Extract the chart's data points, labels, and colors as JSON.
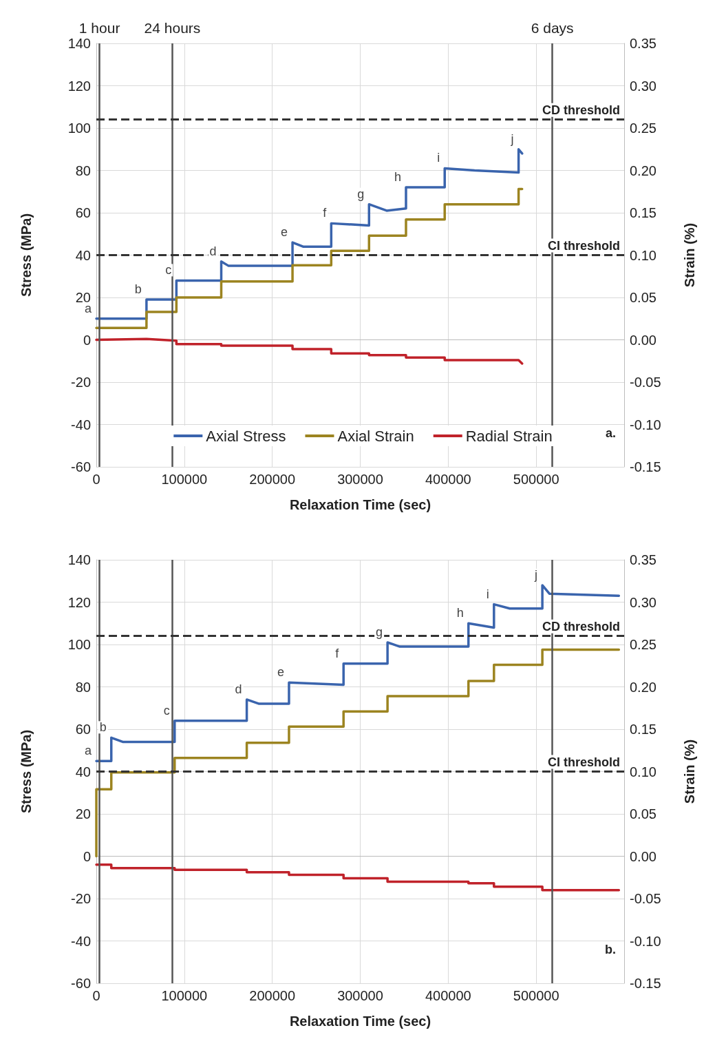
{
  "chart_data": [
    {
      "type": "line",
      "xlabel": "Relaxation Time (sec)",
      "ylabel": "Stress (MPa)",
      "y2label": "Strain (%)",
      "xlim": [
        0,
        600000
      ],
      "xticks": [
        0,
        100000,
        200000,
        300000,
        400000,
        500000
      ],
      "ylim": [
        -60,
        140
      ],
      "yticks": [
        -60,
        -40,
        -20,
        0,
        20,
        40,
        60,
        80,
        100,
        120,
        140
      ],
      "y2lim": [
        -0.15,
        0.35
      ],
      "y2ticks": [
        {
          "value": -0.15,
          "label": "-0.15"
        },
        {
          "value": -0.1,
          "label": "-0.10"
        },
        {
          "value": -0.05,
          "label": "-0.05"
        },
        {
          "value": 0,
          "label": "0.00"
        },
        {
          "value": 0.05,
          "label": "0.05"
        },
        {
          "value": 0.1,
          "label": "0.10"
        },
        {
          "value": 0.15,
          "label": "0.15"
        },
        {
          "value": 0.2,
          "label": "0.20"
        },
        {
          "value": 0.25,
          "label": "0.25"
        },
        {
          "value": 0.3,
          "label": "0.30"
        },
        {
          "value": 0.35,
          "label": "0.35"
        }
      ],
      "grid": true,
      "legend": "bottom",
      "marker": "none",
      "line_style": "solid",
      "series": [
        {
          "name": "Axial Stress",
          "color": "#3a64ad",
          "x": [
            0,
            57000,
            57000,
            91000,
            91000,
            142000,
            142000,
            150000,
            223000,
            223000,
            235000,
            267000,
            267000,
            310000,
            310000,
            330000,
            352000,
            352000,
            396000,
            396000,
            430000,
            480000,
            480000,
            484000
          ],
          "values": [
            10,
            10,
            19,
            19,
            28,
            28,
            37,
            35,
            35,
            46,
            44,
            44,
            55,
            54,
            64,
            61,
            62,
            72,
            72,
            81,
            80,
            79,
            90,
            88
          ]
        },
        {
          "name": "Axial Strain",
          "color": "#9c8420",
          "axis": "y2",
          "x": [
            0,
            57000,
            57000,
            91000,
            91000,
            142000,
            142000,
            223000,
            223000,
            267000,
            267000,
            310000,
            310000,
            352000,
            352000,
            396000,
            396000,
            480000,
            480000,
            484000
          ],
          "values": [
            0.014,
            0.014,
            0.033,
            0.033,
            0.05,
            0.05,
            0.069,
            0.069,
            0.088,
            0.088,
            0.105,
            0.105,
            0.123,
            0.123,
            0.142,
            0.142,
            0.16,
            0.16,
            0.178,
            0.178
          ]
        },
        {
          "name": "Radial Strain",
          "color": "#c0222a",
          "axis": "y2",
          "x": [
            0,
            57000,
            91000,
            91000,
            142000,
            142000,
            223000,
            223000,
            267000,
            267000,
            310000,
            310000,
            352000,
            352000,
            396000,
            396000,
            480000,
            484000
          ],
          "values": [
            0,
            0.001,
            -0.001,
            -0.005,
            -0.005,
            -0.007,
            -0.007,
            -0.011,
            -0.011,
            -0.016,
            -0.016,
            -0.018,
            -0.018,
            -0.021,
            -0.021,
            -0.024,
            -0.024,
            -0.028
          ]
        }
      ],
      "ref_lines": [
        {
          "axis": "x",
          "value": 3600,
          "label": "1 hour",
          "color": "#555555",
          "line_style": "solid"
        },
        {
          "axis": "x",
          "value": 86400,
          "label": "24 hours",
          "color": "#555555",
          "line_style": "solid"
        },
        {
          "axis": "x",
          "value": 518400,
          "label": "6 days",
          "color": "#555555",
          "line_style": "solid"
        },
        {
          "axis": "y",
          "value": 104,
          "label": "CD threshold",
          "color": "#333333",
          "line_style": "dashed"
        },
        {
          "axis": "y",
          "value": 40,
          "label": "CI threshold",
          "color": "#333333",
          "line_style": "dashed"
        }
      ],
      "annotations": [
        {
          "text": "a",
          "x": 0,
          "y": 10
        },
        {
          "text": "b",
          "x": 57000,
          "y": 19
        },
        {
          "text": "c",
          "x": 91000,
          "y": 28
        },
        {
          "text": "d",
          "x": 142000,
          "y": 37
        },
        {
          "text": "e",
          "x": 223000,
          "y": 46
        },
        {
          "text": "f",
          "x": 267000,
          "y": 55
        },
        {
          "text": "g",
          "x": 310000,
          "y": 64
        },
        {
          "text": "h",
          "x": 352000,
          "y": 72
        },
        {
          "text": "i",
          "x": 396000,
          "y": 81
        },
        {
          "text": "j",
          "x": 480000,
          "y": 90
        },
        "a."
      ]
    },
    {
      "type": "line",
      "xlabel": "Relaxation Time (sec)",
      "ylabel": "Stress (MPa)",
      "y2label": "Strain (%)",
      "xlim": [
        0,
        600000
      ],
      "xticks": [
        0,
        100000,
        200000,
        300000,
        400000,
        500000
      ],
      "ylim": [
        -60,
        140
      ],
      "yticks": [
        -60,
        -40,
        -20,
        0,
        20,
        40,
        60,
        80,
        100,
        120,
        140
      ],
      "y2lim": [
        -0.15,
        0.35
      ],
      "y2ticks": [
        {
          "value": -0.15,
          "label": "-0.15"
        },
        {
          "value": -0.1,
          "label": "-0.10"
        },
        {
          "value": -0.05,
          "label": "-0.05"
        },
        {
          "value": 0,
          "label": "0.00"
        },
        {
          "value": 0.05,
          "label": "0.05"
        },
        {
          "value": 0.1,
          "label": "0.10"
        },
        {
          "value": 0.15,
          "label": "0.15"
        },
        {
          "value": 0.2,
          "label": "0.20"
        },
        {
          "value": 0.25,
          "label": "0.25"
        },
        {
          "value": 0.3,
          "label": "0.30"
        },
        {
          "value": 0.35,
          "label": "0.35"
        }
      ],
      "grid": true,
      "marker": "none",
      "line_style": "solid",
      "series": [
        {
          "color": "#3a64ad",
          "x": [
            0,
            17000,
            17000,
            30000,
            89000,
            89000,
            171000,
            171000,
            185000,
            219000,
            219000,
            281000,
            281000,
            331000,
            331000,
            345000,
            423000,
            423000,
            452000,
            452000,
            470000,
            507000,
            507000,
            515000,
            594000
          ],
          "values": [
            45,
            45,
            56,
            54,
            54,
            64,
            64,
            74,
            72,
            72,
            82,
            81,
            91,
            91,
            101,
            99,
            99,
            110,
            108,
            119,
            117,
            117,
            128,
            124,
            123
          ]
        },
        {
          "color": "#9c8420",
          "axis": "y2",
          "x": [
            0,
            0,
            17000,
            17000,
            89000,
            89000,
            171000,
            171000,
            219000,
            219000,
            281000,
            281000,
            331000,
            331000,
            423000,
            423000,
            452000,
            452000,
            507000,
            507000,
            594000
          ],
          "values": [
            0,
            0.079,
            0.079,
            0.099,
            0.099,
            0.116,
            0.116,
            0.134,
            0.134,
            0.153,
            0.153,
            0.171,
            0.171,
            0.189,
            0.189,
            0.207,
            0.207,
            0.226,
            0.226,
            0.244,
            0.244
          ]
        },
        {
          "color": "#c0222a",
          "axis": "y2",
          "x": [
            0,
            17000,
            17000,
            89000,
            89000,
            171000,
            171000,
            219000,
            219000,
            281000,
            281000,
            331000,
            331000,
            423000,
            423000,
            452000,
            452000,
            507000,
            507000,
            594000
          ],
          "values": [
            -0.01,
            -0.01,
            -0.014,
            -0.014,
            -0.016,
            -0.016,
            -0.019,
            -0.019,
            -0.022,
            -0.022,
            -0.026,
            -0.026,
            -0.03,
            -0.03,
            -0.032,
            -0.032,
            -0.036,
            -0.036,
            -0.04,
            -0.04
          ]
        }
      ],
      "ref_lines": [
        {
          "axis": "x",
          "value": 3600,
          "color": "#555555",
          "line_style": "solid"
        },
        {
          "axis": "x",
          "value": 86400,
          "color": "#555555",
          "line_style": "solid"
        },
        {
          "axis": "x",
          "value": 518400,
          "color": "#555555",
          "line_style": "solid"
        },
        {
          "axis": "y",
          "value": 104,
          "label": "CD threshold",
          "color": "#333333",
          "line_style": "dashed"
        },
        {
          "axis": "y",
          "value": 40,
          "label": "CI threshold",
          "color": "#333333",
          "line_style": "dashed"
        }
      ],
      "annotations": [
        {
          "text": "a",
          "x": 0,
          "y": 45
        },
        {
          "text": "b",
          "x": 17000,
          "y": 56
        },
        {
          "text": "c",
          "x": 89000,
          "y": 64
        },
        {
          "text": "d",
          "x": 171000,
          "y": 74
        },
        {
          "text": "e",
          "x": 219000,
          "y": 82
        },
        {
          "text": "f",
          "x": 281000,
          "y": 91
        },
        {
          "text": "g",
          "x": 331000,
          "y": 101
        },
        {
          "text": "h",
          "x": 423000,
          "y": 110
        },
        {
          "text": "i",
          "x": 452000,
          "y": 119
        },
        {
          "text": "j",
          "x": 507000,
          "y": 128
        },
        "b."
      ]
    }
  ]
}
